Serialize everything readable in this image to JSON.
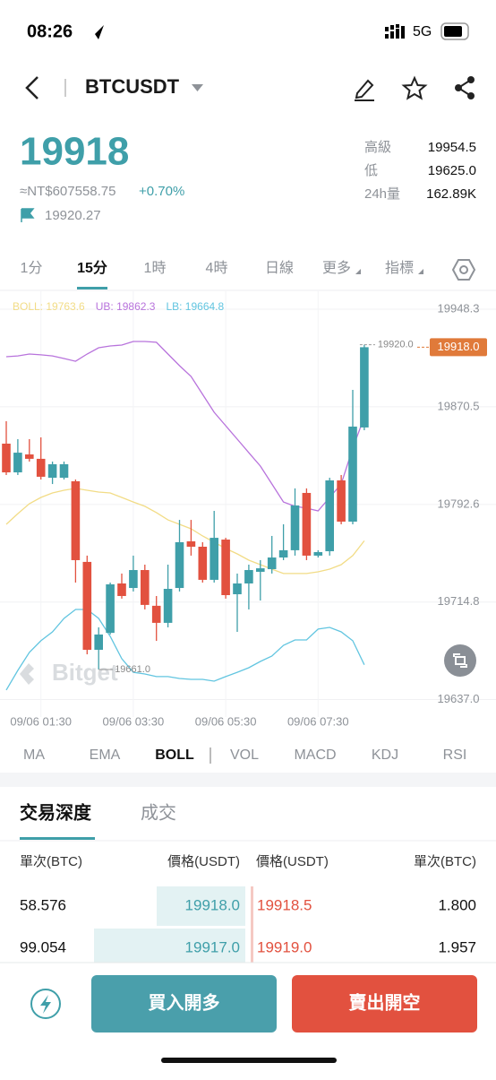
{
  "status_bar": {
    "time": "08:26",
    "network": "5G"
  },
  "header": {
    "symbol": "BTCUSDT"
  },
  "ticker": {
    "price": "19918",
    "fiat": "≈NT$607558.75",
    "change": "+0.70%",
    "mark_price": "19920.27",
    "stats": [
      {
        "label": "高級",
        "value": "19954.5"
      },
      {
        "label": "低",
        "value": "19625.0"
      },
      {
        "label": "24h量",
        "value": "162.89K"
      }
    ]
  },
  "intervals": {
    "items": [
      "1分",
      "15分",
      "1時",
      "4時",
      "日線",
      "更多",
      "指標"
    ],
    "active": 1
  },
  "chart_data": {
    "type": "candlestick",
    "watermark": "Bitget",
    "up_color": "#3f9fa9",
    "down_color": "#e2513f",
    "categories": [
      null,
      null,
      null,
      "09/06 01:30",
      null,
      null,
      null,
      null,
      null,
      null,
      null,
      "09/06 03:30",
      null,
      null,
      null,
      null,
      null,
      null,
      null,
      "09/06 05:30",
      null,
      null,
      null,
      null,
      null,
      null,
      null,
      "09/06 07:30",
      null,
      null,
      null,
      null
    ],
    "open": [
      19841.1,
      19818.2,
      19832.5,
      19829.0,
      19813.9,
      19813.9,
      19811.1,
      19746.8,
      19676.7,
      19690.2,
      19729.6,
      19726.0,
      19740.3,
      19711.8,
      19698.2,
      19726.0,
      19763.2,
      19758.9,
      19732.5,
      19764.6,
      19721.0,
      19729.6,
      19738.9,
      19741.0,
      19750.3,
      19756.1,
      19801.8,
      19751.8,
      19755.3,
      19811.8,
      19778.9,
      19854.0
    ],
    "high": [
      19859.0,
      19844.7,
      19844.7,
      19846.1,
      19826.8,
      19826.8,
      19812.5,
      19751.8,
      19694.6,
      19730.3,
      19737.5,
      19751.8,
      19744.6,
      19719.6,
      19744.6,
      19780.3,
      19780.3,
      19762.5,
      19787.5,
      19766.0,
      19737.5,
      19744.6,
      19748.2,
      19767.5,
      19776.8,
      19805.4,
      19805.4,
      19756.1,
      19813.9,
      19816.1,
      19884.0,
      19920.0
    ],
    "low": [
      19816.1,
      19816.1,
      19826.8,
      19812.5,
      19808.9,
      19812.5,
      19730.3,
      19673.1,
      19661.0,
      19688.9,
      19717.5,
      19723.2,
      19708.9,
      19683.8,
      19694.6,
      19723.2,
      19751.8,
      19730.3,
      19730.3,
      19717.5,
      19691.0,
      19708.9,
      19716.0,
      19737.5,
      19748.2,
      19751.8,
      19748.2,
      19750.3,
      19751.8,
      19776.8,
      19776.8,
      19851.8
    ],
    "close": [
      19818.2,
      19833.9,
      19829.0,
      19814.7,
      19824.7,
      19824.7,
      19748.2,
      19676.7,
      19688.9,
      19728.9,
      19719.6,
      19740.3,
      19712.5,
      19698.2,
      19725.3,
      19762.5,
      19758.9,
      19732.5,
      19766.0,
      19720.3,
      19729.6,
      19740.3,
      19741.7,
      19750.3,
      19756.1,
      19791.8,
      19751.8,
      19754.6,
      19811.8,
      19778.9,
      19854.7,
      19918.0
    ],
    "series": [
      {
        "name": "BOLL: 19763.6",
        "color": "#f2dc86",
        "values": [
          19776.8,
          19785.3,
          19793.2,
          19798.2,
          19801.8,
          19803.9,
          19805.4,
          19803.9,
          19802.5,
          19801.8,
          19798.2,
          19794.6,
          19791.1,
          19786.1,
          19780.3,
          19776.8,
          19773.2,
          19767.5,
          19762.5,
          19757.5,
          19753.2,
          19748.2,
          19744.6,
          19741.0,
          19737.5,
          19737.5,
          19737.5,
          19738.9,
          19741.0,
          19744.6,
          19751.8,
          19763.6
        ]
      },
      {
        "name": "UB: 19862.3",
        "color": "#b873dc",
        "values": [
          19910.4,
          19911.1,
          19912.6,
          19911.9,
          19911.1,
          19909.0,
          19906.8,
          19912.6,
          19917.6,
          19919.0,
          19919.7,
          19922.6,
          19922.6,
          19921.9,
          19912.6,
          19903.3,
          19894.7,
          19880.4,
          19866.1,
          19855.4,
          19844.7,
          19833.9,
          19823.2,
          19808.9,
          19794.6,
          19791.1,
          19789.6,
          19787.5,
          19798.2,
          19808.9,
          19837.5,
          19862.3
        ]
      },
      {
        "name": "LB: 19664.8",
        "color": "#62c5e0",
        "values": [
          19644.6,
          19660.3,
          19674.6,
          19683.9,
          19691.0,
          19701.7,
          19708.9,
          19708.9,
          19701.7,
          19687.4,
          19669.6,
          19658.8,
          19657.4,
          19655.3,
          19655.3,
          19653.8,
          19653.1,
          19653.1,
          19651.7,
          19655.3,
          19658.8,
          19662.4,
          19667.4,
          19671.7,
          19680.3,
          19684.6,
          19684.6,
          19693.2,
          19694.6,
          19691.0,
          19683.9,
          19664.8
        ]
      }
    ],
    "ylim": [
      19623.1,
      19962.6
    ],
    "yticks": [
      19948.3,
      19870.5,
      19792.6,
      19714.8,
      {
        "value": 19637.0,
        "label": "19637.0"
      }
    ],
    "grid": true,
    "last_price": {
      "value": 19918.0,
      "label": "19918.0"
    },
    "annotations": [
      {
        "text": "19920.0",
        "value": 19920.0
      },
      {
        "text": "19661.0",
        "value": 19661.0
      }
    ]
  },
  "indicators": {
    "items": [
      "MA",
      "EMA",
      "BOLL",
      "VOL",
      "MACD",
      "KDJ",
      "RSI"
    ],
    "active": 2
  },
  "order_book": {
    "tabs": [
      "交易深度",
      "成交"
    ],
    "active": 0,
    "headers": [
      "單次(BTC)",
      "價格(USDT)",
      "價格(USDT)",
      "單次(BTC)"
    ],
    "rows": [
      [
        "58.576",
        "19918.0",
        "19918.5",
        "1.800"
      ],
      [
        "99.054",
        "19917.0",
        "19919.0",
        "1.957"
      ]
    ]
  },
  "buttons": {
    "buy": "買入開多",
    "sell": "賣出開空"
  }
}
